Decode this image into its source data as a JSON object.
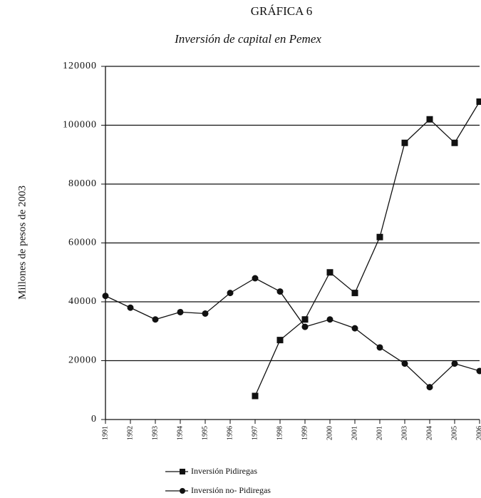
{
  "chart_data": {
    "type": "line",
    "title": "GRÁFICA 6",
    "subtitle": "Inversión de capital en Pemex",
    "y_label": "Millones de pesos de 2003",
    "categories": [
      "1991",
      "1992",
      "1993",
      "1994",
      "1995",
      "1996",
      "1997",
      "1998",
      "1999",
      "2000",
      "2001",
      "2001",
      "2003",
      "2004",
      "2005",
      "2006"
    ],
    "series": [
      {
        "name": "Inversión Pidiregas",
        "color": "#111111",
        "marker": "square",
        "values": [
          null,
          null,
          null,
          null,
          null,
          null,
          8000,
          27000,
          34000,
          50000,
          43000,
          62000,
          94000,
          102000,
          94000,
          108000
        ]
      },
      {
        "name": "Inversión no- Pidiregas",
        "color": "#111111",
        "marker": "circle",
        "values": [
          42000,
          38000,
          34000,
          36500,
          36000,
          43000,
          48000,
          43500,
          31500,
          34000,
          31000,
          24500,
          19000,
          11000,
          19000,
          16500
        ]
      }
    ],
    "ylim": [
      0,
      120000
    ],
    "yticks": [
      0,
      20000,
      40000,
      60000,
      80000,
      100000,
      120000
    ],
    "grid": true
  }
}
